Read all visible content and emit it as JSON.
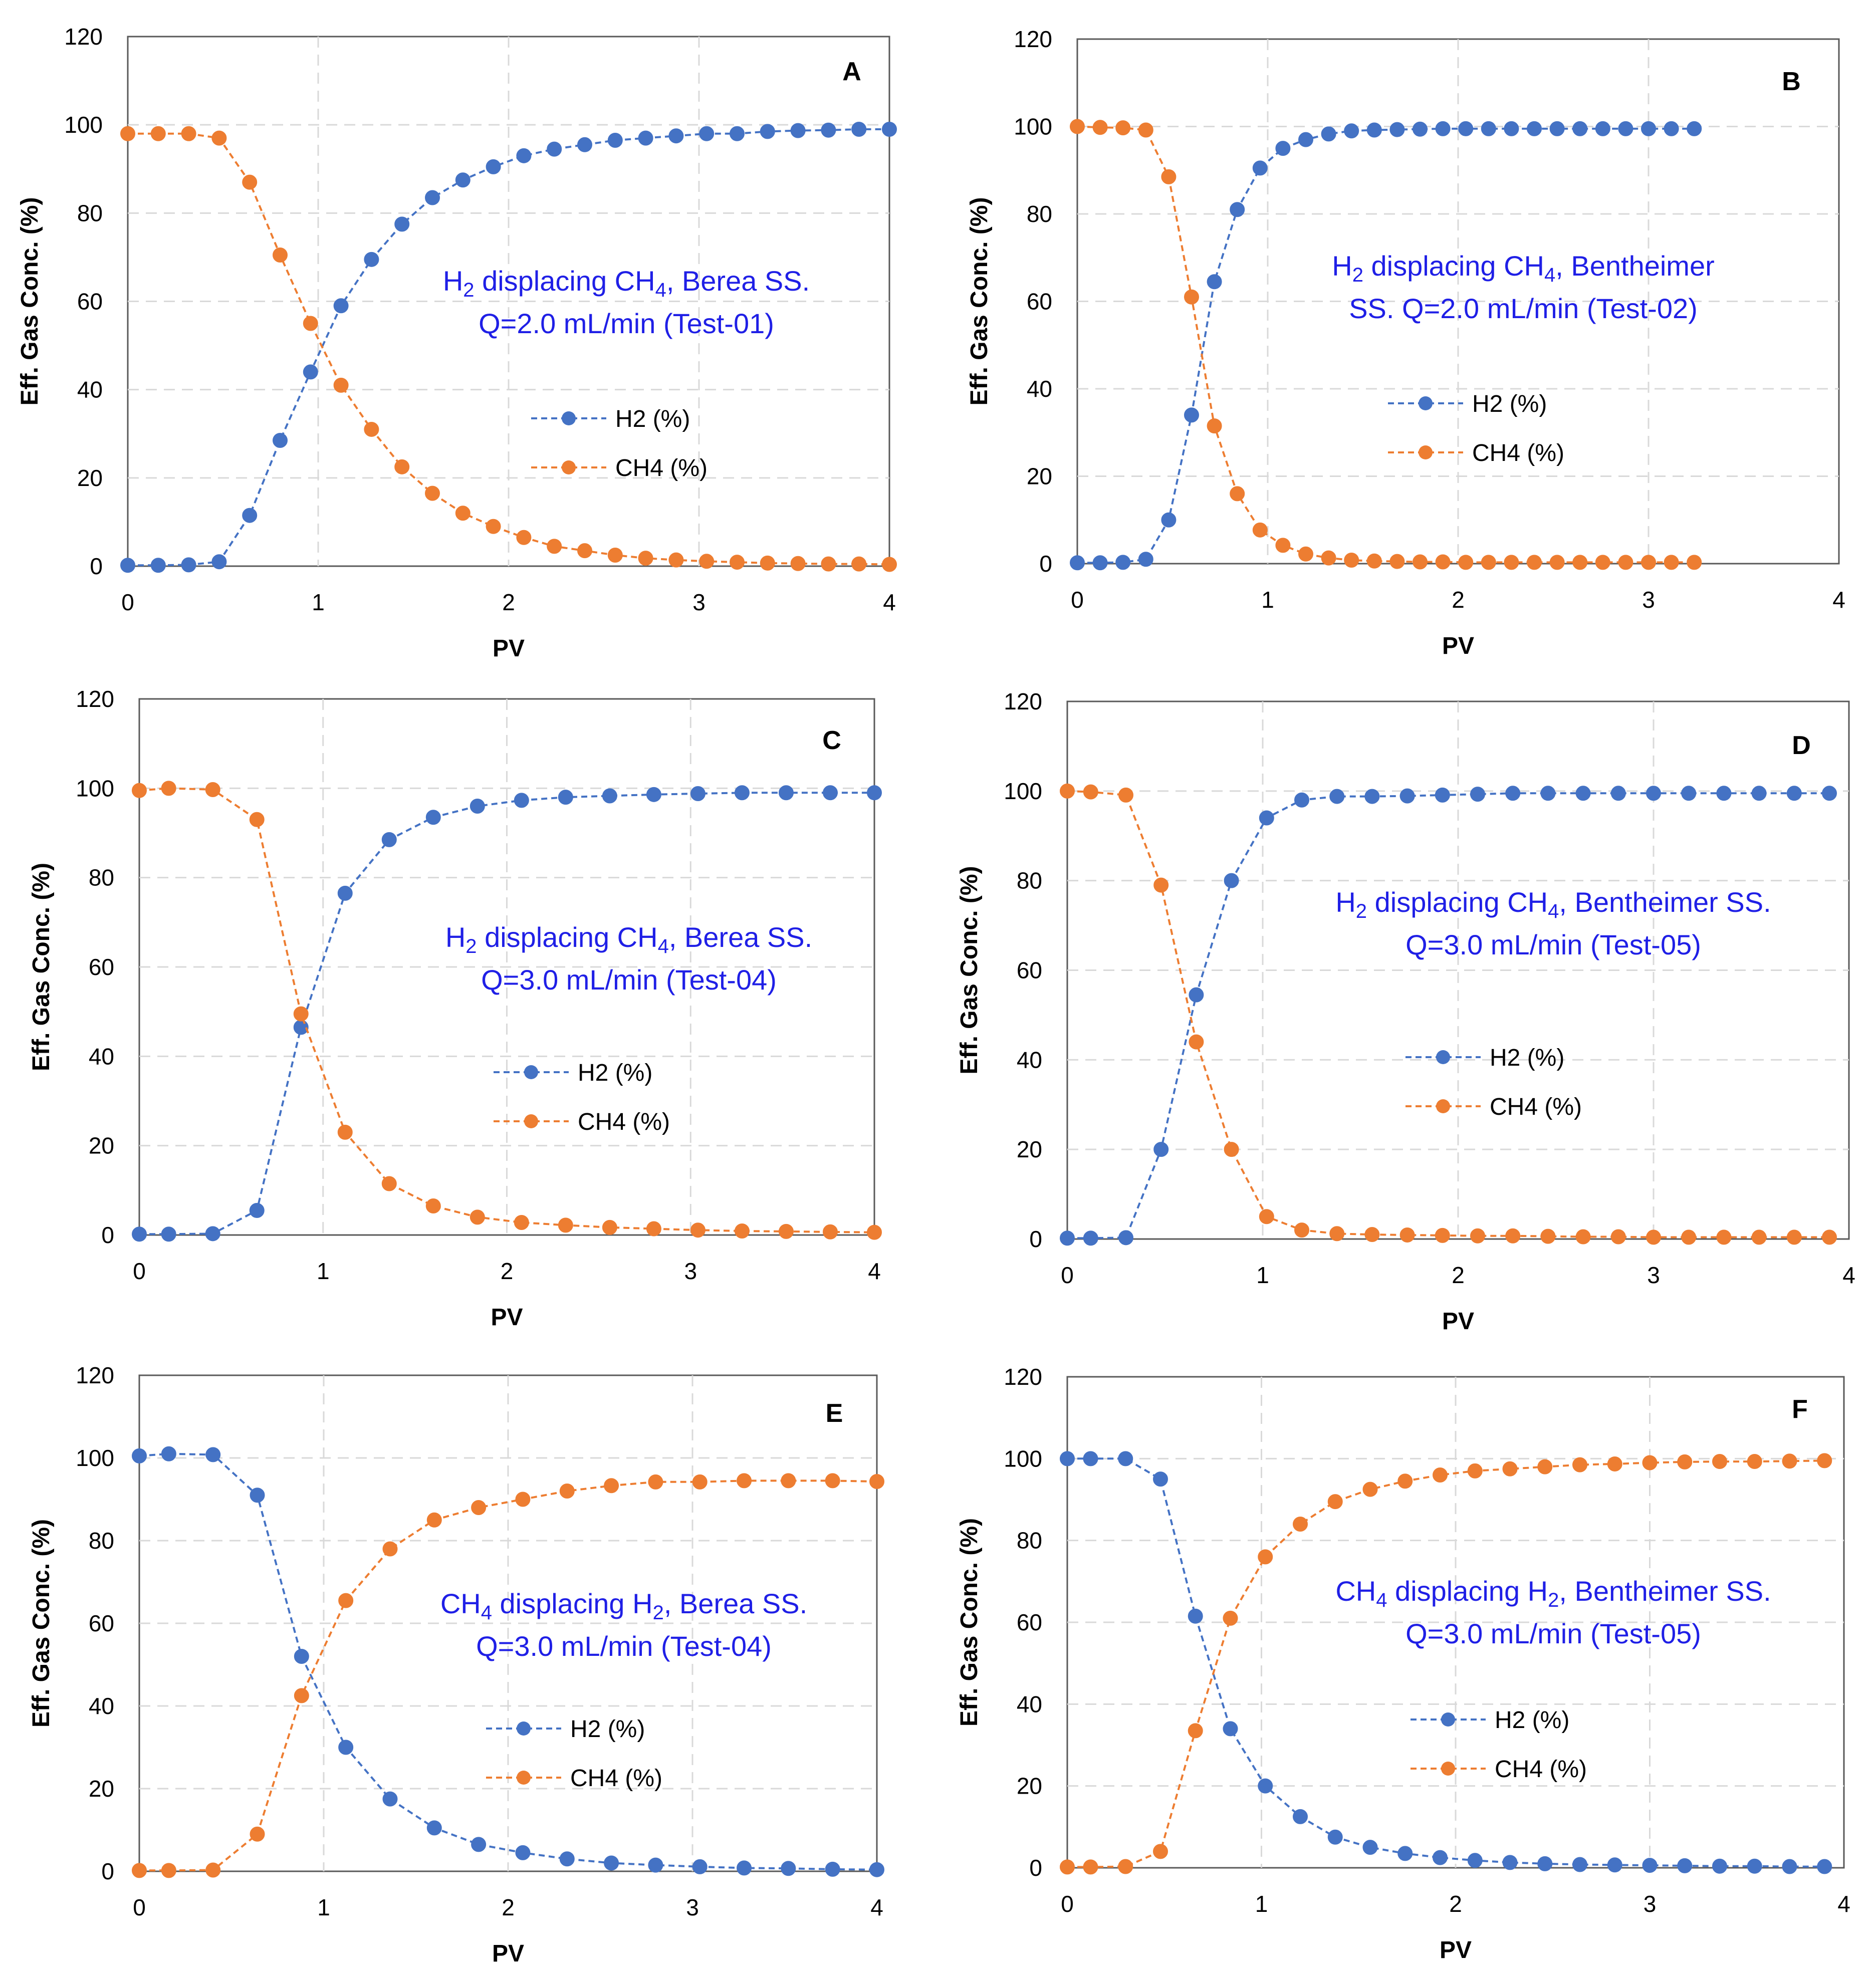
{
  "colors": {
    "h2": "#4472C4",
    "ch4": "#ED7D31",
    "annotation": "#1f1fe6",
    "grid": "#d9d9d9",
    "frame": "#595959"
  },
  "chart_data": [
    {
      "panel": "A",
      "type": "line",
      "xlabel": "PV",
      "ylabel": "Eff. Gas Conc. (%)",
      "xlim": [
        0,
        4
      ],
      "ylim": [
        0,
        120
      ],
      "xticks": [
        "0",
        "1",
        "2",
        "3",
        "4"
      ],
      "yticks": [
        "0",
        "20",
        "40",
        "60",
        "80",
        "100",
        "120"
      ],
      "annotation": {
        "line1_pre": "H",
        "line1_sub1": "2",
        "line1_mid": " displacing CH",
        "line1_sub2": "4",
        "line1_post": ", Berea SS.",
        "line2": "Q=2.0 mL/min (Test-01)"
      },
      "series": [
        {
          "name": "H2 (%)",
          "color_key": "h2",
          "x": [
            0,
            0.16,
            0.32,
            0.48,
            0.64,
            0.8,
            0.96,
            1.12,
            1.28,
            1.44,
            1.6,
            1.76,
            1.92,
            2.08,
            2.24,
            2.4,
            2.56,
            2.72,
            2.88,
            3.04,
            3.2,
            3.36,
            3.52,
            3.68,
            3.84,
            4.0
          ],
          "y": [
            0.2,
            0.2,
            0.3,
            1,
            11.5,
            28.5,
            44,
            59,
            69.5,
            77.5,
            83.5,
            87.5,
            90.5,
            93,
            94.5,
            95.5,
            96.5,
            97,
            97.5,
            98,
            98,
            98.5,
            98.7,
            98.8,
            99,
            99
          ]
        },
        {
          "name": "CH4 (%)",
          "color_key": "ch4",
          "x": [
            0,
            0.16,
            0.32,
            0.48,
            0.64,
            0.8,
            0.96,
            1.12,
            1.28,
            1.44,
            1.6,
            1.76,
            1.92,
            2.08,
            2.24,
            2.4,
            2.56,
            2.72,
            2.88,
            3.04,
            3.2,
            3.36,
            3.52,
            3.68,
            3.84,
            4.0
          ],
          "y": [
            98,
            98,
            98,
            97,
            87,
            70.5,
            55,
            41,
            31,
            22.5,
            16.5,
            12,
            9,
            6.5,
            4.5,
            3.5,
            2.5,
            1.8,
            1.4,
            1.1,
            0.9,
            0.7,
            0.6,
            0.5,
            0.5,
            0.4
          ]
        }
      ]
    },
    {
      "panel": "B",
      "type": "line",
      "xlabel": "PV",
      "ylabel": "Eff. Gas Conc. (%)",
      "xlim": [
        0,
        4
      ],
      "ylim": [
        0,
        120
      ],
      "xticks": [
        "0",
        "1",
        "2",
        "3",
        "4"
      ],
      "yticks": [
        "0",
        "20",
        "40",
        "60",
        "80",
        "100",
        "120"
      ],
      "annotation": {
        "line1_pre": "H",
        "line1_sub1": "2",
        "line1_mid": " displacing CH",
        "line1_sub2": "4",
        "line1_post": ", Bentheimer",
        "line2": "SS. Q=2.0 mL/min (Test-02)"
      },
      "series": [
        {
          "name": "H2 (%)",
          "color_key": "h2",
          "x": [
            0,
            0.12,
            0.24,
            0.36,
            0.48,
            0.6,
            0.72,
            0.84,
            0.96,
            1.08,
            1.2,
            1.32,
            1.44,
            1.56,
            1.68,
            1.8,
            1.92,
            2.04,
            2.16,
            2.28,
            2.4,
            2.52,
            2.64,
            2.76,
            2.88,
            3.0,
            3.12,
            3.24
          ],
          "y": [
            0.2,
            0.2,
            0.3,
            1,
            10,
            34,
            64.5,
            81,
            90.5,
            95,
            97,
            98.3,
            99,
            99.2,
            99.3,
            99.4,
            99.5,
            99.5,
            99.5,
            99.5,
            99.5,
            99.5,
            99.5,
            99.5,
            99.5,
            99.5,
            99.5,
            99.5
          ]
        },
        {
          "name": "CH4 (%)",
          "color_key": "ch4",
          "x": [
            0,
            0.12,
            0.24,
            0.36,
            0.48,
            0.6,
            0.72,
            0.84,
            0.96,
            1.08,
            1.2,
            1.32,
            1.44,
            1.56,
            1.68,
            1.8,
            1.92,
            2.04,
            2.16,
            2.28,
            2.4,
            2.52,
            2.64,
            2.76,
            2.88,
            3.0,
            3.12,
            3.24
          ],
          "y": [
            100,
            99.8,
            99.7,
            99.2,
            88.5,
            61,
            31.5,
            16,
            7.7,
            4.2,
            2.2,
            1.3,
            0.8,
            0.6,
            0.5,
            0.4,
            0.4,
            0.3,
            0.3,
            0.3,
            0.3,
            0.3,
            0.3,
            0.3,
            0.3,
            0.3,
            0.3,
            0.3
          ]
        }
      ]
    },
    {
      "panel": "C",
      "type": "line",
      "xlabel": "PV",
      "ylabel": "Eff. Gas Conc. (%)",
      "xlim": [
        0,
        4
      ],
      "ylim": [
        0,
        120
      ],
      "xticks": [
        "0",
        "1",
        "2",
        "3",
        "4"
      ],
      "yticks": [
        "0",
        "20",
        "40",
        "60",
        "80",
        "100",
        "120"
      ],
      "annotation": {
        "line1_pre": "H",
        "line1_sub1": "2",
        "line1_mid": " displacing CH",
        "line1_sub2": "4",
        "line1_post": ", Berea SS.",
        "line2": "Q=3.0 mL/min (Test-04)"
      },
      "series": [
        {
          "name": "H2 (%)",
          "color_key": "h2",
          "x": [
            0,
            0.16,
            0.4,
            0.64,
            0.88,
            1.12,
            1.36,
            1.6,
            1.84,
            2.08,
            2.32,
            2.56,
            2.8,
            3.04,
            3.28,
            3.52,
            3.76,
            4.0
          ],
          "y": [
            0.2,
            0.2,
            0.3,
            5.5,
            46.5,
            76.5,
            88.5,
            93.5,
            96,
            97.3,
            98,
            98.3,
            98.6,
            98.8,
            99,
            99,
            99,
            99
          ]
        },
        {
          "name": "CH4 (%)",
          "color_key": "ch4",
          "x": [
            0,
            0.16,
            0.4,
            0.64,
            0.88,
            1.12,
            1.36,
            1.6,
            1.84,
            2.08,
            2.32,
            2.56,
            2.8,
            3.04,
            3.28,
            3.52,
            3.76,
            4.0
          ],
          "y": [
            99.5,
            100,
            99.7,
            93,
            49.5,
            23,
            11.5,
            6.5,
            4,
            2.8,
            2.2,
            1.7,
            1.4,
            1.1,
            0.9,
            0.8,
            0.7,
            0.6
          ]
        }
      ]
    },
    {
      "panel": "D",
      "type": "line",
      "xlabel": "PV",
      "ylabel": "Eff. Gas Conc. (%)",
      "xlim": [
        0,
        4
      ],
      "ylim": [
        0,
        120
      ],
      "xticks": [
        "0",
        "1",
        "2",
        "3",
        "4"
      ],
      "yticks": [
        "0",
        "20",
        "40",
        "60",
        "80",
        "100",
        "120"
      ],
      "annotation": {
        "line1_pre": "H",
        "line1_sub1": "2",
        "line1_mid": " displacing CH",
        "line1_sub2": "4",
        "line1_post": ", Bentheimer SS.",
        "line2": "Q=3.0 mL/min (Test-05)"
      },
      "series": [
        {
          "name": "H2 (%)",
          "color_key": "h2",
          "x": [
            0,
            0.12,
            0.3,
            0.48,
            0.66,
            0.84,
            1.02,
            1.2,
            1.38,
            1.56,
            1.74,
            1.92,
            2.1,
            2.28,
            2.46,
            2.64,
            2.82,
            3.0,
            3.18,
            3.36,
            3.54,
            3.72,
            3.9
          ],
          "y": [
            0.2,
            0.2,
            0.3,
            20,
            54.5,
            80,
            94,
            98,
            98.8,
            98.8,
            98.9,
            99.1,
            99.3,
            99.5,
            99.5,
            99.5,
            99.5,
            99.5,
            99.5,
            99.5,
            99.5,
            99.5,
            99.5
          ]
        },
        {
          "name": "CH4 (%)",
          "color_key": "ch4",
          "x": [
            0,
            0.12,
            0.3,
            0.48,
            0.66,
            0.84,
            1.02,
            1.2,
            1.38,
            1.56,
            1.74,
            1.92,
            2.1,
            2.28,
            2.46,
            2.64,
            2.82,
            3.0,
            3.18,
            3.36,
            3.54,
            3.72,
            3.9
          ],
          "y": [
            100,
            99.8,
            99.1,
            79,
            44,
            20,
            5,
            2,
            1.2,
            1,
            0.9,
            0.8,
            0.7,
            0.7,
            0.6,
            0.5,
            0.5,
            0.4,
            0.4,
            0.4,
            0.4,
            0.4,
            0.4
          ]
        }
      ]
    },
    {
      "panel": "E",
      "type": "line",
      "xlabel": "PV",
      "ylabel": "Eff. Gas Conc. (%)",
      "xlim": [
        0,
        4
      ],
      "ylim": [
        0,
        120
      ],
      "xticks": [
        "0",
        "1",
        "2",
        "3",
        "4"
      ],
      "yticks": [
        "0",
        "20",
        "40",
        "60",
        "80",
        "100",
        "120"
      ],
      "annotation": {
        "line1_pre": "CH",
        "line1_sub1": "4",
        "line1_mid": " displacing H",
        "line1_sub2": "2",
        "line1_post": ", Berea SS.",
        "line2": "Q=3.0 mL/min (Test-04)"
      },
      "series": [
        {
          "name": "H2 (%)",
          "color_key": "h2",
          "x": [
            0,
            0.16,
            0.4,
            0.64,
            0.88,
            1.12,
            1.36,
            1.6,
            1.84,
            2.08,
            2.32,
            2.56,
            2.8,
            3.04,
            3.28,
            3.52,
            3.76,
            4.0
          ],
          "y": [
            100.5,
            101,
            100.8,
            91,
            52,
            30,
            17.5,
            10.5,
            6.5,
            4.5,
            3,
            2,
            1.5,
            1.1,
            0.8,
            0.7,
            0.5,
            0.4
          ]
        },
        {
          "name": "CH4 (%)",
          "color_key": "ch4",
          "x": [
            0,
            0.16,
            0.4,
            0.64,
            0.88,
            1.12,
            1.36,
            1.6,
            1.84,
            2.08,
            2.32,
            2.56,
            2.8,
            3.04,
            3.28,
            3.52,
            3.76,
            4.0
          ],
          "y": [
            0.2,
            0.2,
            0.3,
            9,
            42.5,
            65.5,
            78,
            85,
            88,
            90,
            92,
            93.3,
            94.2,
            94.2,
            94.5,
            94.5,
            94.5,
            94.3
          ]
        }
      ]
    },
    {
      "panel": "F",
      "type": "line",
      "xlabel": "PV",
      "ylabel": "Eff. Gas Conc. (%)",
      "xlim": [
        0,
        4
      ],
      "ylim": [
        0,
        120
      ],
      "xticks": [
        "0",
        "1",
        "2",
        "3",
        "4"
      ],
      "yticks": [
        "0",
        "20",
        "40",
        "60",
        "80",
        "100",
        "120"
      ],
      "annotation": {
        "line1_pre": "CH",
        "line1_sub1": "4",
        "line1_mid": " displacing H",
        "line1_sub2": "2",
        "line1_post": ", Bentheimer SS.",
        "line2": "Q=3.0 mL/min (Test-05)"
      },
      "series": [
        {
          "name": "H2 (%)",
          "color_key": "h2",
          "x": [
            0,
            0.12,
            0.3,
            0.48,
            0.66,
            0.84,
            1.02,
            1.2,
            1.38,
            1.56,
            1.74,
            1.92,
            2.1,
            2.28,
            2.46,
            2.64,
            2.82,
            3.0,
            3.18,
            3.36,
            3.54,
            3.72,
            3.9
          ],
          "y": [
            100,
            100,
            100,
            95,
            61.5,
            34,
            20,
            12.5,
            7.5,
            5,
            3.5,
            2.5,
            1.8,
            1.3,
            1,
            0.8,
            0.7,
            0.6,
            0.5,
            0.4,
            0.4,
            0.3,
            0.3
          ]
        },
        {
          "name": "CH4 (%)",
          "color_key": "ch4",
          "x": [
            0,
            0.12,
            0.3,
            0.48,
            0.66,
            0.84,
            1.02,
            1.2,
            1.38,
            1.56,
            1.74,
            1.92,
            2.1,
            2.28,
            2.46,
            2.64,
            2.82,
            3.0,
            3.18,
            3.36,
            3.54,
            3.72,
            3.9
          ],
          "y": [
            0.2,
            0.2,
            0.3,
            4,
            33.5,
            61,
            76,
            84,
            89.5,
            92.5,
            94.5,
            96,
            97,
            97.5,
            98,
            98.5,
            98.7,
            99,
            99.2,
            99.3,
            99.3,
            99.4,
            99.5
          ]
        }
      ]
    }
  ]
}
